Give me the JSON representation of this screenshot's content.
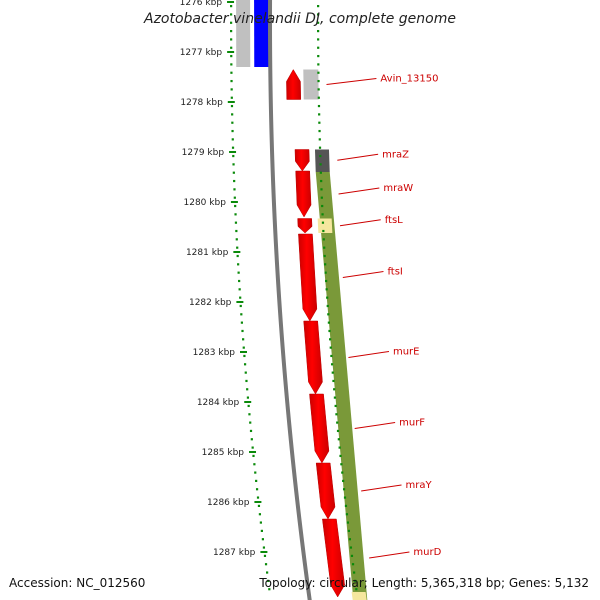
{
  "title": "Azotobacter vinelandii DJ, complete genome",
  "accession": "Accession: NC_012560",
  "topology": "Topology: circular; Length: 5,365,318 bp; Genes: 5,132",
  "scale_unit": "kbp",
  "ticks": [
    1276,
    1277,
    1278,
    1279,
    1280,
    1281,
    1282,
    1283,
    1284,
    1285,
    1286,
    1287
  ],
  "colors": {
    "cds": "#ff0000",
    "cds_dark": "#cc0000",
    "blue_gene": "#0000ff",
    "gray_feature": "#c0c0c0",
    "olive": "#6b8e23",
    "pale_yellow": "#f5e79e",
    "dark_gray": "#555555",
    "green_dots": "#0a8a0a",
    "label": "#cc0000"
  },
  "genes": [
    {
      "name": "Avin_13150",
      "start_kbp": 1277.35,
      "end_kbp": 1277.95,
      "strand": "-"
    },
    {
      "name": "mraZ",
      "start_kbp": 1278.95,
      "end_kbp": 1279.38,
      "strand": "+"
    },
    {
      "name": "mraW",
      "start_kbp": 1279.38,
      "end_kbp": 1280.3,
      "strand": "+"
    },
    {
      "name": "ftsL",
      "start_kbp": 1280.33,
      "end_kbp": 1280.62,
      "strand": "+"
    },
    {
      "name": "ftsI",
      "start_kbp": 1280.64,
      "end_kbp": 1282.38,
      "strand": "+"
    },
    {
      "name": "murE",
      "start_kbp": 1282.38,
      "end_kbp": 1283.84,
      "strand": "+"
    },
    {
      "name": "murF",
      "start_kbp": 1283.84,
      "end_kbp": 1285.22,
      "strand": "+"
    },
    {
      "name": "mraY",
      "start_kbp": 1285.22,
      "end_kbp": 1286.34,
      "strand": "+"
    },
    {
      "name": "murD",
      "start_kbp": 1286.34,
      "end_kbp": 1287.9,
      "strand": "+"
    }
  ]
}
